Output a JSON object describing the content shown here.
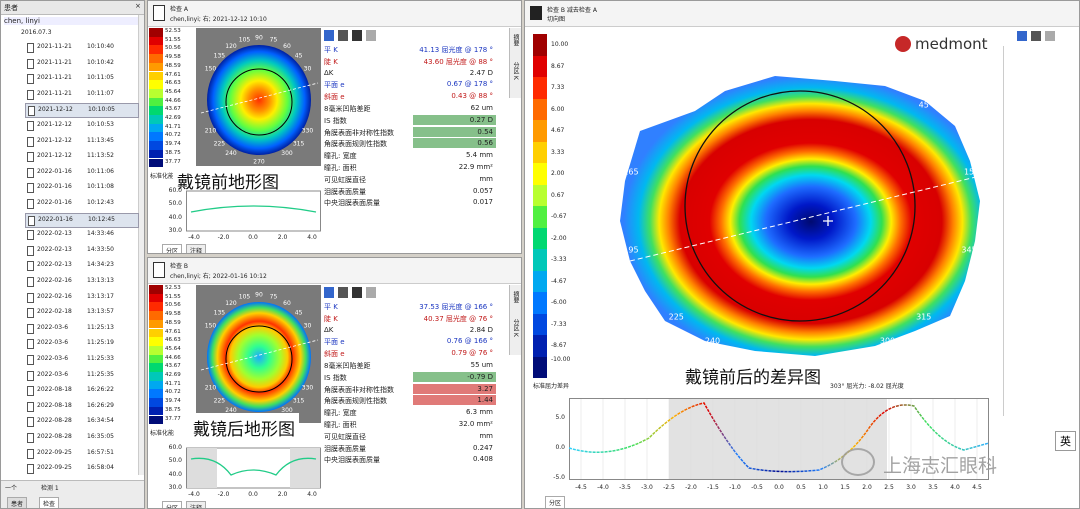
{
  "patients": {
    "title": "患者",
    "patient": "chen, linyi",
    "birth": "2016.07.3",
    "exams": [
      [
        "2021-11-21",
        "10:10:40"
      ],
      [
        "2021-11-21",
        "10:10:42"
      ],
      [
        "2021-11-21",
        "10:11:05"
      ],
      [
        "2021-11-21",
        "10:11:07"
      ],
      [
        "2021-12-12",
        "10:10:05"
      ],
      [
        "2021-12-12",
        "10:10:53"
      ],
      [
        "2021-12-12",
        "11:13:45"
      ],
      [
        "2021-12-12",
        "11:13:52"
      ],
      [
        "2022-01-16",
        "10:11:06"
      ],
      [
        "2022-01-16",
        "10:11:08"
      ],
      [
        "2022-01-16",
        "10:12:43"
      ],
      [
        "2022-01-16",
        "10:12:45"
      ],
      [
        "2022-02-13",
        "14:33:46"
      ],
      [
        "2022-02-13",
        "14:33:50"
      ],
      [
        "2022-02-13",
        "14:34:23"
      ],
      [
        "2022-02-16",
        "13:13:13"
      ],
      [
        "2022-02-16",
        "13:13:17"
      ],
      [
        "2022-02-18",
        "13:13:57"
      ],
      [
        "2022-03-6",
        "11:25:13"
      ],
      [
        "2022-03-6",
        "11:25:19"
      ],
      [
        "2022-03-6",
        "11:25:33"
      ],
      [
        "2022-03-6",
        "11:25:35"
      ],
      [
        "2022-08-18",
        "16:26:22"
      ],
      [
        "2022-08-18",
        "16:26:29"
      ],
      [
        "2022-08-28",
        "16:34:54"
      ],
      [
        "2022-08-28",
        "16:35:05"
      ],
      [
        "2022-09-25",
        "16:57:51"
      ],
      [
        "2022-09-25",
        "16:58:04"
      ]
    ],
    "footer": {
      "selector": "一个",
      "count": "检测 1",
      "tabs": [
        "患者",
        "检查"
      ]
    }
  },
  "exam_a": {
    "title": "检查 A",
    "subtitle": "chen,linyi; 右; 2021-12-12 10:10",
    "scale": [
      "52.53",
      "51.55",
      "50.56",
      "49.58",
      "48.59",
      "47.61",
      "46.63",
      "45.64",
      "44.66",
      "43.67",
      "42.69",
      "41.71",
      "40.72",
      "39.74",
      "38.75",
      "37.77"
    ],
    "angles": [
      "105",
      "90",
      "75",
      "120",
      "60",
      "135",
      "45",
      "150",
      "30",
      "210",
      "330",
      "225",
      "315",
      "240",
      "300",
      "270"
    ],
    "scale_caption": "标准化能",
    "overlay": "戴镜前地形图",
    "rows": [
      {
        "label": "平 K",
        "value": "41.13 屈光度 @ 178 °",
        "color": "blue"
      },
      {
        "label": "陡 K",
        "value": "43.60 屈光度 @ 88 °",
        "color": "red"
      },
      {
        "label": "ΔK",
        "value": "2.47 D"
      },
      {
        "label": "平面 e",
        "value": "0.67 @ 178 °",
        "color": "blue"
      },
      {
        "label": "斜面 e",
        "value": "0.43 @ 88 °",
        "color": "red"
      },
      {
        "label": "8毫米凹陷差距",
        "value": "62 um"
      },
      {
        "label": "IS 指数",
        "value": "0.27 D",
        "highlight": "green"
      },
      {
        "label": "角膜表面非对称性指数",
        "value": "0.54",
        "highlight": "green"
      },
      {
        "label": "角膜表面规则性指数",
        "value": "0.56",
        "highlight": "green"
      },
      {
        "label": "瞳孔: 宽度",
        "value": "5.4 mm"
      },
      {
        "label": "瞳孔: 面积",
        "value": "22.9 mm²"
      },
      {
        "label": "可见虹膜直径",
        "value": "mm"
      },
      {
        "label": "泪膜表面质量",
        "value": "0.057"
      },
      {
        "label": "中央泪膜表面质量",
        "value": "0.017"
      }
    ],
    "profile": {
      "yticks": [
        "60.0",
        "50.0",
        "40.0",
        "30.0"
      ],
      "xticks": [
        "-4.0",
        "-2.0",
        "0.0",
        "2.0",
        "4.0"
      ]
    },
    "tabs": [
      "分区",
      "注释"
    ],
    "side_tabs": [
      "摘要",
      "分区 K"
    ]
  },
  "exam_b": {
    "title": "检查 B",
    "subtitle": "chen,linyi; 右; 2022-01-16 10:12",
    "scale": [
      "52.53",
      "51.55",
      "50.56",
      "49.58",
      "48.59",
      "47.61",
      "46.63",
      "45.64",
      "44.66",
      "43.67",
      "42.69",
      "41.71",
      "40.72",
      "39.74",
      "38.75",
      "37.77"
    ],
    "angles": [
      "105",
      "90",
      "75",
      "120",
      "60",
      "135",
      "45",
      "150",
      "30",
      "210",
      "330",
      "225",
      "315",
      "240",
      "300",
      "270"
    ],
    "scale_caption": "标准化能",
    "overlay": "戴镜后地形图",
    "rows": [
      {
        "label": "平 K",
        "value": "37.53 屈光度 @ 166 °",
        "color": "blue"
      },
      {
        "label": "陡 K",
        "value": "40.37 屈光度 @ 76 °",
        "color": "red"
      },
      {
        "label": "ΔK",
        "value": "2.84 D"
      },
      {
        "label": "平面 e",
        "value": "0.76 @ 166 °",
        "color": "blue"
      },
      {
        "label": "斜面 e",
        "value": "0.79 @ 76 °",
        "color": "red"
      },
      {
        "label": "8毫米凹陷差距",
        "value": "55 um"
      },
      {
        "label": "IS 指数",
        "value": "-0.79 D",
        "highlight": "green"
      },
      {
        "label": "角膜表面非对称性指数",
        "value": "3.27",
        "highlight": "red"
      },
      {
        "label": "角膜表面规则性指数",
        "value": "1.44",
        "highlight": "red"
      },
      {
        "label": "瞳孔: 宽度",
        "value": "6.3 mm"
      },
      {
        "label": "瞳孔: 面积",
        "value": "32.0 mm²"
      },
      {
        "label": "可见虹膜直径",
        "value": "mm"
      },
      {
        "label": "泪膜表面质量",
        "value": "0.247"
      },
      {
        "label": "中央泪膜表面质量",
        "value": "0.408"
      }
    ],
    "profile": {
      "yticks": [
        "60.0",
        "50.0",
        "40.0",
        "30.0"
      ],
      "xticks": [
        "-4.0",
        "-2.0",
        "0.0",
        "2.0",
        "4.0"
      ]
    },
    "tabs": [
      "分区",
      "注释"
    ],
    "side_tabs": [
      "摘要",
      "分区 K"
    ]
  },
  "difference": {
    "title": "检查 B 减去检查 A",
    "subtitle": "切向图",
    "logo": "medmont",
    "scale": [
      "10.00",
      "8.67",
      "7.33",
      "6.00",
      "4.67",
      "3.33",
      "2.00",
      "0.67",
      "-0.67",
      "-2.00",
      "-3.33",
      "-4.67",
      "-6.00",
      "-7.33",
      "-8.67",
      "-10.00"
    ],
    "angles": [
      "105",
      "75",
      "135",
      "45",
      "165",
      "15",
      "195",
      "345",
      "225",
      "315",
      "240",
      "300",
      "255",
      "285"
    ],
    "scale_caption": "标准屈力差异",
    "readout": "303°  屈光力: -8.02 屈光度",
    "overlay": "戴镜前后的差异图",
    "profile": {
      "yticks": [
        "5.0",
        "0.0",
        "-5.0"
      ],
      "xticks": [
        "-4.5",
        "-4.0",
        "-3.5",
        "-3.0",
        "-2.5",
        "-2.0",
        "-1.5",
        "-1.0",
        "-0.5",
        "0.0",
        "0.5",
        "1.0",
        "1.5",
        "2.0",
        "2.5",
        "3.0",
        "3.5",
        "4.0",
        "4.5"
      ]
    },
    "tabs": [
      "分区"
    ]
  },
  "watermark": "上海志汇眼科",
  "ime": "英"
}
